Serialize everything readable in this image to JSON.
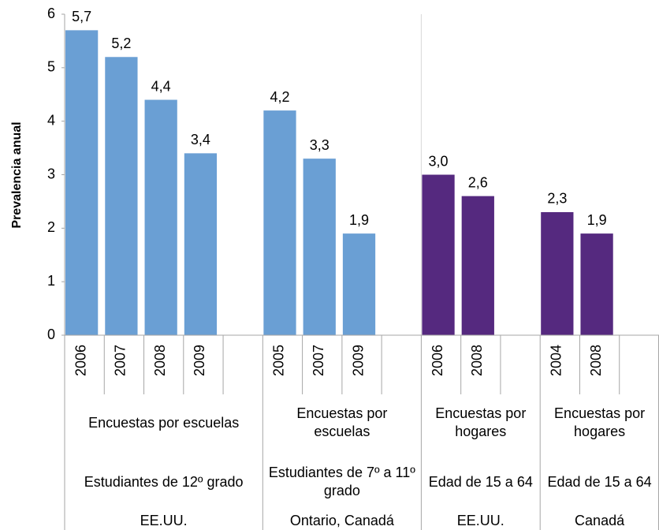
{
  "chart_data": {
    "type": "bar",
    "y_label": "Prevalencia anual",
    "ylim": [
      0,
      6
    ],
    "yticks": [
      0,
      1,
      2,
      3,
      4,
      5,
      6
    ],
    "groups": [
      {
        "categories": [
          "2006",
          "2007",
          "2008",
          "2009"
        ],
        "values": [
          5.7,
          5.2,
          4.4,
          3.4
        ],
        "value_labels": [
          "5,7",
          "5,2",
          "4,4",
          "3,4"
        ],
        "color": "#6a9fd4",
        "survey": "Encuestas por escuelas",
        "population": "Estudiantes de 12º grado",
        "country": "EE.UU."
      },
      {
        "categories": [
          "2005",
          "2007",
          "2009"
        ],
        "values": [
          4.2,
          3.3,
          1.9
        ],
        "value_labels": [
          "4,2",
          "3,3",
          "1,9"
        ],
        "color": "#6a9fd4",
        "survey": "Encuestas por escuelas",
        "population": "Estudiantes de 7º a 11º grado",
        "country": "Ontario, Canadá"
      },
      {
        "categories": [
          "2006",
          "2008"
        ],
        "values": [
          3.0,
          2.6
        ],
        "value_labels": [
          "3,0",
          "2,6"
        ],
        "color": "#55297f",
        "survey": "Encuestas por hogares",
        "population": "Edad de 15 a 64",
        "country": "EE.UU."
      },
      {
        "categories": [
          "2004",
          "2008"
        ],
        "values": [
          2.3,
          1.9
        ],
        "value_labels": [
          "2,3",
          "1,9"
        ],
        "color": "#55297f",
        "survey": "Encuestas por hogares",
        "population": "Edad de 15 a 64",
        "country": "Canadá"
      }
    ]
  }
}
